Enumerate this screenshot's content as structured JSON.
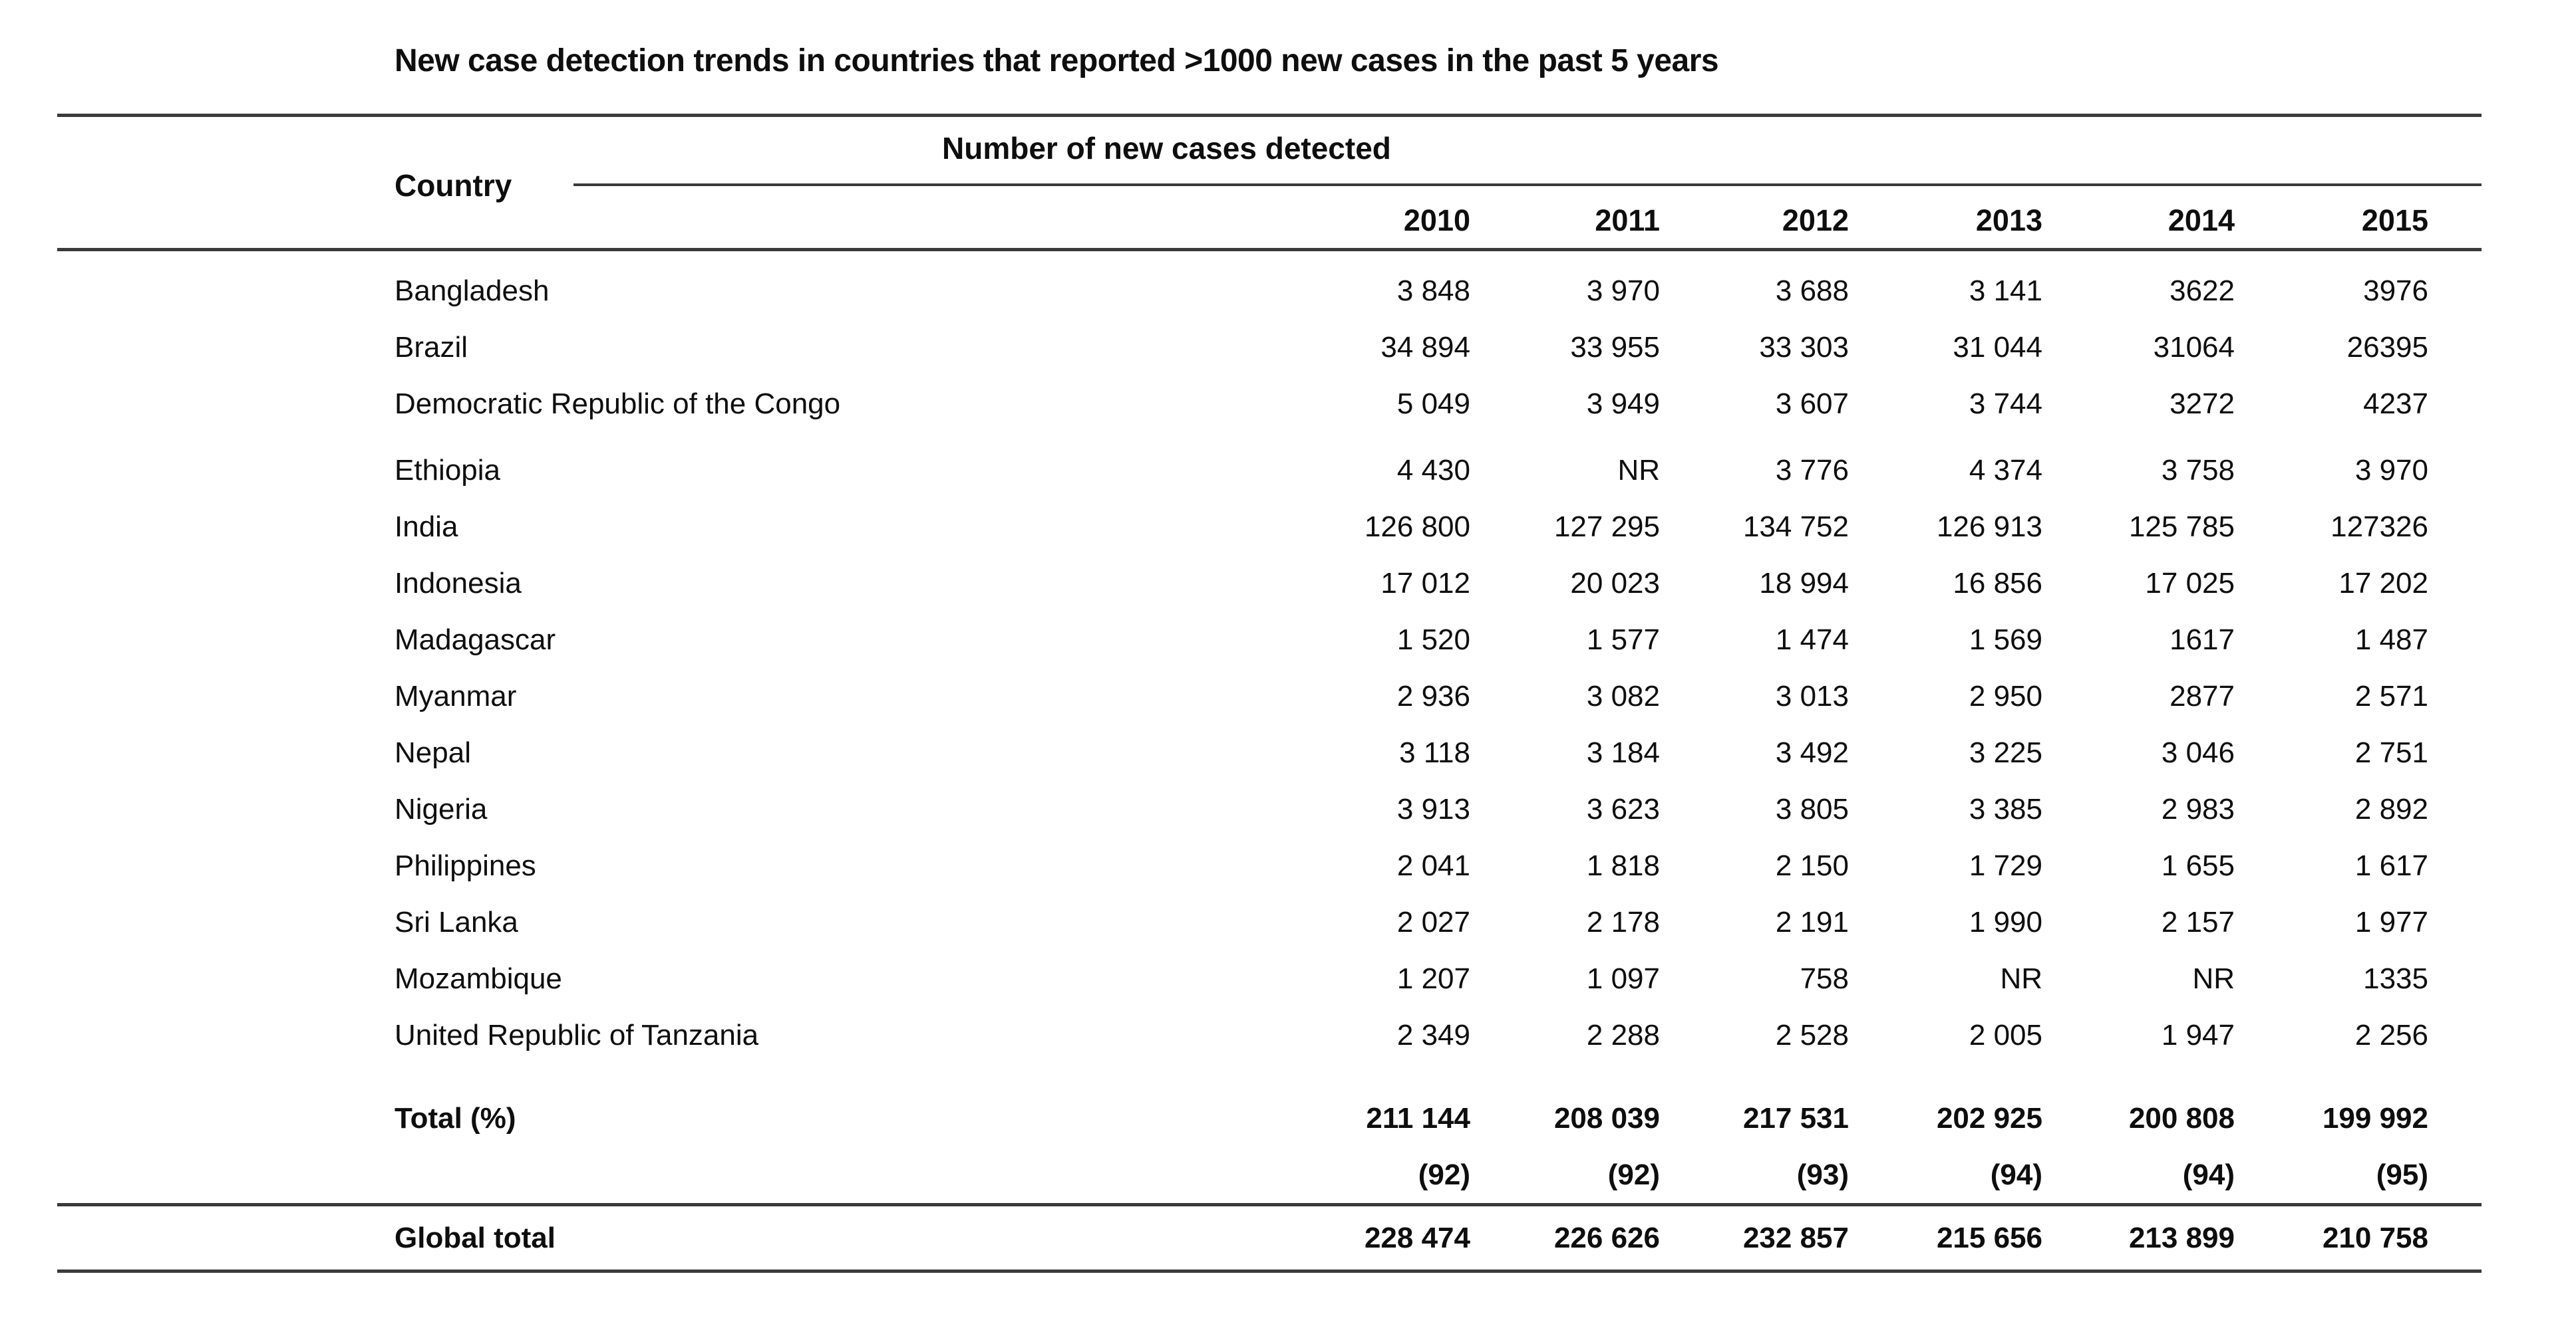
{
  "title": "New case detection trends in countries that reported >1000 new cases in the past 5 years",
  "colors": {
    "background": "#ffffff",
    "text": "#0e0e0e",
    "rule": "#3a3a3a"
  },
  "table": {
    "country_header": "Country",
    "group_header": "Number of new cases detected",
    "years": [
      "2010",
      "2011",
      "2012",
      "2013",
      "2014",
      "2015"
    ],
    "group_breaks": [
      3
    ],
    "rows": [
      {
        "country": "Bangladesh",
        "values": [
          "3 848",
          "3 970",
          "3 688",
          "3 141",
          "3622",
          "3976"
        ]
      },
      {
        "country": "Brazil",
        "values": [
          "34 894",
          "33 955",
          "33 303",
          "31 044",
          "31064",
          "26395"
        ]
      },
      {
        "country": "Democratic Republic of the Congo",
        "values": [
          "5 049",
          "3 949",
          "3 607",
          "3 744",
          "3272",
          "4237"
        ]
      },
      {
        "country": "Ethiopia",
        "values": [
          "4 430",
          "NR",
          "3 776",
          "4 374",
          "3 758",
          "3 970"
        ]
      },
      {
        "country": "India",
        "values": [
          "126 800",
          "127 295",
          "134 752",
          "126 913",
          "125 785",
          "127326"
        ]
      },
      {
        "country": "Indonesia",
        "values": [
          "17 012",
          "20 023",
          "18 994",
          "16 856",
          "17 025",
          "17 202"
        ]
      },
      {
        "country": "Madagascar",
        "values": [
          "1 520",
          "1 577",
          "1 474",
          "1 569",
          "1617",
          "1 487"
        ]
      },
      {
        "country": "Myanmar",
        "values": [
          "2 936",
          "3 082",
          "3 013",
          "2 950",
          "2877",
          "2 571"
        ]
      },
      {
        "country": "Nepal",
        "values": [
          "3 118",
          "3 184",
          "3 492",
          "3 225",
          "3 046",
          "2 751"
        ]
      },
      {
        "country": "Nigeria",
        "values": [
          "3 913",
          "3 623",
          "3 805",
          "3 385",
          "2 983",
          "2 892"
        ]
      },
      {
        "country": "Philippines",
        "values": [
          "2 041",
          "1 818",
          "2 150",
          "1 729",
          "1 655",
          "1 617"
        ]
      },
      {
        "country": "Sri Lanka",
        "values": [
          "2 027",
          "2 178",
          "2 191",
          "1 990",
          "2 157",
          "1 977"
        ]
      },
      {
        "country": "Mozambique",
        "values": [
          "1 207",
          "1 097",
          "758",
          "NR",
          "NR",
          "1335"
        ]
      },
      {
        "country": "United Republic of Tanzania",
        "values": [
          "2 349",
          "2 288",
          "2 528",
          "2 005",
          "1 947",
          "2 256"
        ]
      }
    ],
    "total_row": {
      "label": "Total (%)",
      "values": [
        "211 144",
        "208 039",
        "217 531",
        "202 925",
        "200 808",
        "199 992"
      ],
      "percents": [
        "(92)",
        "(92)",
        "(93)",
        "(94)",
        "(94)",
        "(95)"
      ]
    },
    "global_row": {
      "label": "Global total",
      "values": [
        "228 474",
        "226 626",
        "232 857",
        "215 656",
        "213 899",
        "210 758"
      ]
    }
  }
}
